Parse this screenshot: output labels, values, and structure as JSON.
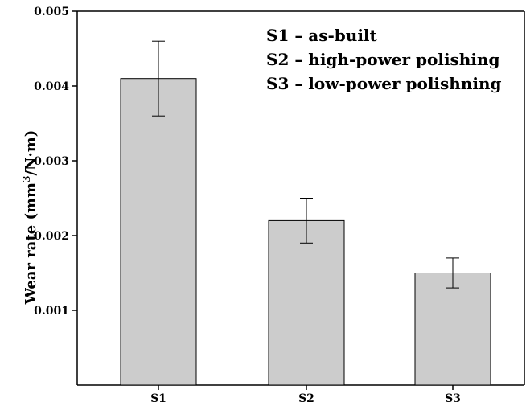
{
  "chart_data": {
    "type": "bar",
    "categories": [
      "S1",
      "S2",
      "S3"
    ],
    "values": [
      0.0041,
      0.0022,
      0.0015
    ],
    "errors": [
      0.0005,
      0.0003,
      0.0002
    ],
    "ylabel_prefix": "Wear rate (mm",
    "ylabel_sup": "3",
    "ylabel_suffix": "/N·m)",
    "ylim": [
      0,
      0.005
    ],
    "yticks": [
      "0.001",
      "0.002",
      "0.003",
      "0.004",
      "0.005"
    ],
    "ytick_values": [
      0.001,
      0.002,
      0.003,
      0.004,
      0.005
    ],
    "annotations": [
      "S1 – as-built",
      "S2 – high-power polishing",
      "S3 – low-power polishning"
    ],
    "colors": {
      "bar": "#cccccc",
      "axis": "#000000"
    }
  }
}
